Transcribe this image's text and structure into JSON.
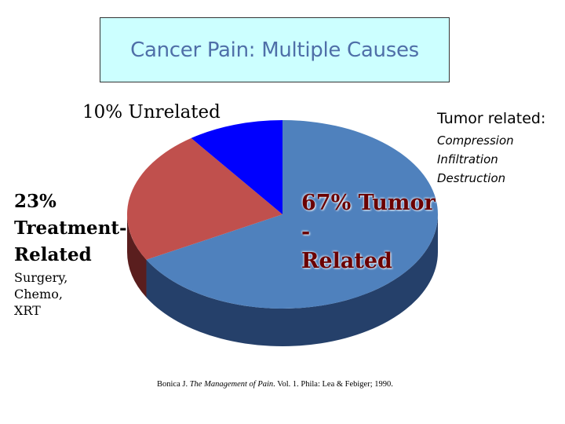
{
  "title": "Cancer Pain: Multiple Causes",
  "chart_data": {
    "type": "pie",
    "style": "3d",
    "slices": [
      {
        "label": "67% Tumor - Related",
        "value": 67,
        "color": "#4f81bd",
        "side_color": "#25406a"
      },
      {
        "label": "23% Treatment-Related",
        "value": 23,
        "color": "#c0504d",
        "side_color": "#5a1e1e"
      },
      {
        "label": "10% Unrelated",
        "value": 10,
        "color": "#0000ff",
        "side_color": "#00007a"
      }
    ]
  },
  "labels": {
    "unrelated": "10% Unrelated",
    "treatment_pct": "23%",
    "treatment_name": "Treatment-",
    "treatment_name2": "Related",
    "treatment_details": [
      "Surgery,",
      "Chemo,",
      "XRT"
    ],
    "tumor_heading": "Tumor related:",
    "tumor_details": [
      "Compression",
      "Infiltration",
      "Destruction"
    ],
    "tumor_big_line1": "67% Tumor",
    "tumor_big_line2": "-",
    "tumor_big_line3": "Related"
  },
  "citation": {
    "author": "Bonica J.",
    "book": "The Management of Pain",
    "rest": ". Vol. 1. Phila: Lea & Febiger; 1990."
  }
}
